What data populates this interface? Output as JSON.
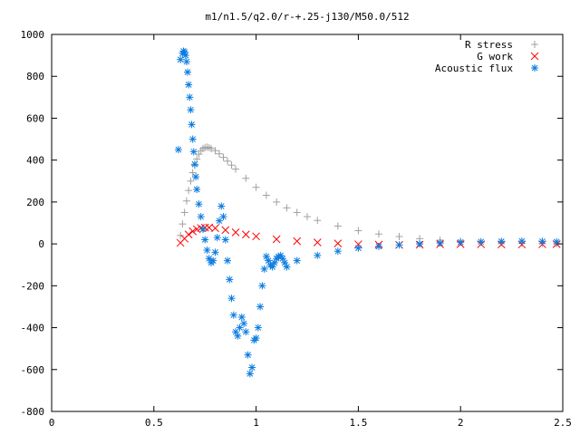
{
  "chart_data": {
    "type": "scatter",
    "title": "m1/n1.5/q2.0/r-+.25-j130/M50.0/512",
    "xlabel": "",
    "ylabel": "",
    "xlim": [
      0,
      2.5
    ],
    "ylim": [
      -800,
      1000
    ],
    "xticks": [
      0,
      0.5,
      1,
      1.5,
      2,
      2.5
    ],
    "xtick_labels": [
      "0",
      "0.5",
      "1",
      "1.5",
      "2",
      "2.5"
    ],
    "yticks": [
      -800,
      -600,
      -400,
      -200,
      0,
      200,
      400,
      600,
      800,
      1000
    ],
    "ytick_labels": [
      "-800",
      "-600",
      "-400",
      "-200",
      "0",
      "200",
      "400",
      "600",
      "800",
      "1000"
    ],
    "grid": false,
    "legend_position": "top-right",
    "series": [
      {
        "name": "R stress",
        "marker": "plus",
        "color": "#a0a0a0",
        "x": [
          0.63,
          0.64,
          0.65,
          0.66,
          0.67,
          0.68,
          0.69,
          0.7,
          0.71,
          0.72,
          0.73,
          0.74,
          0.75,
          0.76,
          0.77,
          0.78,
          0.8,
          0.82,
          0.84,
          0.86,
          0.88,
          0.9,
          0.95,
          1.0,
          1.05,
          1.1,
          1.15,
          1.2,
          1.25,
          1.3,
          1.4,
          1.5,
          1.6,
          1.7,
          1.8,
          1.9,
          2.0,
          2.1,
          2.2,
          2.3,
          2.4,
          2.47
        ],
        "y": [
          40,
          95,
          150,
          205,
          255,
          300,
          340,
          375,
          405,
          428,
          445,
          455,
          460,
          462,
          460,
          455,
          445,
          430,
          413,
          395,
          376,
          357,
          313,
          270,
          232,
          200,
          172,
          150,
          130,
          112,
          85,
          63,
          47,
          35,
          25,
          18,
          12,
          8,
          5,
          3,
          2,
          1
        ]
      },
      {
        "name": "G work",
        "marker": "cross",
        "color": "#ff0000",
        "x": [
          0.63,
          0.65,
          0.67,
          0.69,
          0.71,
          0.73,
          0.75,
          0.77,
          0.8,
          0.85,
          0.9,
          0.95,
          1.0,
          1.1,
          1.2,
          1.3,
          1.4,
          1.5,
          1.6,
          1.7,
          1.8,
          1.9,
          2.0,
          2.1,
          2.2,
          2.3,
          2.4,
          2.47
        ],
        "y": [
          5,
          25,
          45,
          60,
          70,
          76,
          78,
          78,
          75,
          66,
          55,
          45,
          36,
          22,
          13,
          7,
          2,
          -2,
          -4,
          -5,
          -4,
          -2,
          -1,
          -2,
          -3,
          -3,
          -2,
          -1
        ]
      },
      {
        "name": "Acoustic flux",
        "marker": "star",
        "color": "#0a7be0",
        "x": [
          0.62,
          0.63,
          0.64,
          0.645,
          0.65,
          0.655,
          0.66,
          0.665,
          0.67,
          0.675,
          0.68,
          0.685,
          0.69,
          0.695,
          0.7,
          0.705,
          0.71,
          0.72,
          0.73,
          0.74,
          0.75,
          0.76,
          0.77,
          0.78,
          0.79,
          0.8,
          0.81,
          0.82,
          0.83,
          0.84,
          0.85,
          0.86,
          0.87,
          0.88,
          0.89,
          0.9,
          0.91,
          0.92,
          0.93,
          0.94,
          0.95,
          0.96,
          0.97,
          0.98,
          0.99,
          1.0,
          1.01,
          1.02,
          1.03,
          1.04,
          1.05,
          1.06,
          1.07,
          1.08,
          1.09,
          1.1,
          1.11,
          1.12,
          1.13,
          1.14,
          1.15,
          1.2,
          1.3,
          1.4,
          1.5,
          1.6,
          1.7,
          1.8,
          1.9,
          2.0,
          2.1,
          2.2,
          2.3,
          2.4,
          2.47
        ],
        "y": [
          450,
          880,
          910,
          920,
          915,
          900,
          870,
          820,
          760,
          700,
          640,
          570,
          500,
          440,
          380,
          320,
          260,
          190,
          130,
          70,
          20,
          -30,
          -70,
          -90,
          -80,
          -40,
          30,
          110,
          180,
          130,
          20,
          -80,
          -170,
          -260,
          -340,
          -420,
          -440,
          -400,
          -350,
          -380,
          -420,
          -530,
          -620,
          -590,
          -460,
          -450,
          -400,
          -300,
          -200,
          -120,
          -60,
          -80,
          -100,
          -110,
          -90,
          -70,
          -60,
          -55,
          -70,
          -90,
          -110,
          -80,
          -55,
          -35,
          -20,
          -12,
          -5,
          0,
          4,
          8,
          10,
          12,
          13,
          12,
          10
        ]
      }
    ]
  }
}
